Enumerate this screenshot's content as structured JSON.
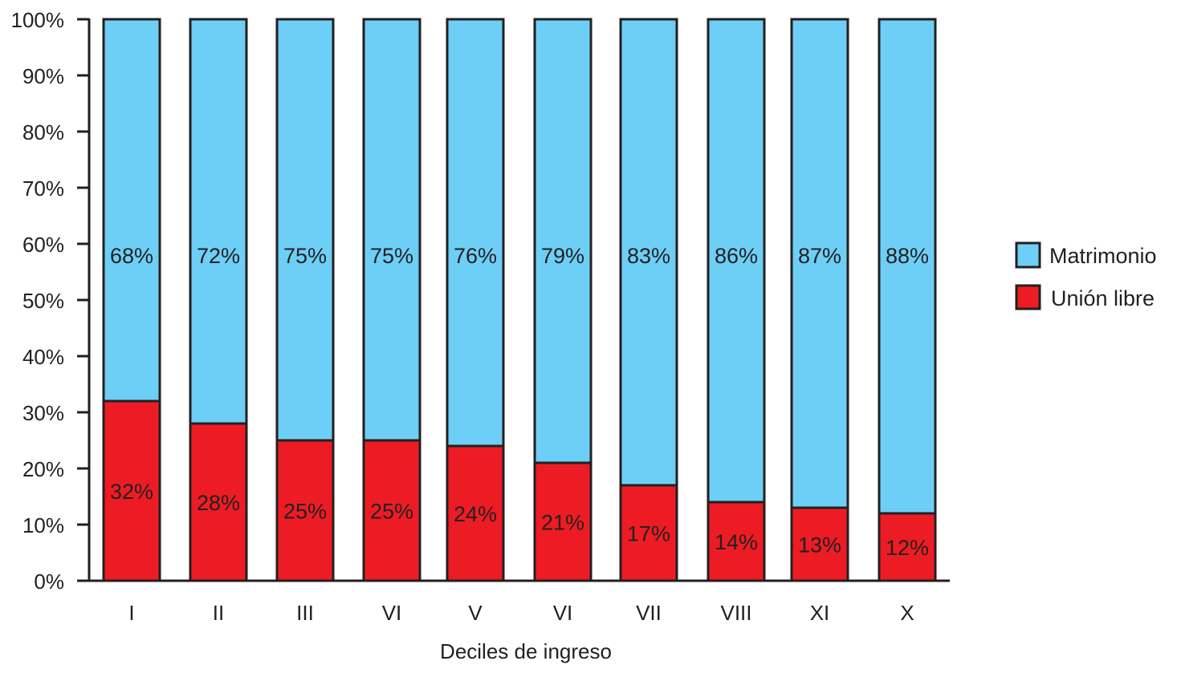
{
  "chart_data": {
    "type": "bar",
    "stacked": true,
    "title": "",
    "xlabel": "Deciles de ingreso",
    "ylabel": "",
    "ylim": [
      0,
      100
    ],
    "yticks": [
      "0%",
      "10%",
      "20%",
      "30%",
      "40%",
      "50%",
      "60%",
      "70%",
      "80%",
      "90%",
      "100%"
    ],
    "categories": [
      "I",
      "II",
      "III",
      "VI",
      "V",
      "VI",
      "VII",
      "VIII",
      "XI",
      "X"
    ],
    "series": [
      {
        "name": "Unión libre",
        "color": "#ed1c24",
        "values": [
          32,
          28,
          25,
          25,
          24,
          21,
          17,
          14,
          13,
          12
        ],
        "labels": [
          "32%",
          "28%",
          "25%",
          "25%",
          "24%",
          "21%",
          "17%",
          "14%",
          "13%",
          "12%"
        ]
      },
      {
        "name": "Matrimonio",
        "color": "#6dcff6",
        "values": [
          68,
          72,
          75,
          75,
          76,
          79,
          83,
          86,
          87,
          88
        ],
        "labels": [
          "68%",
          "72%",
          "75%",
          "75%",
          "76%",
          "79%",
          "83%",
          "86%",
          "87%",
          "88%"
        ]
      }
    ],
    "legend": {
      "placement": "right",
      "entries": [
        "Matrimonio",
        "Unión libre"
      ]
    },
    "grid": false
  }
}
